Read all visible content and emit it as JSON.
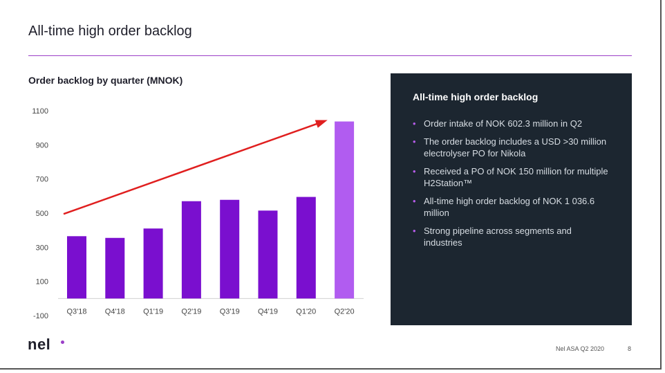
{
  "slide": {
    "title": "All-time high order backlog"
  },
  "chart": {
    "heading": "Order backlog by quarter (MNOK)"
  },
  "chart_data": {
    "type": "bar",
    "title": "Order backlog by quarter (MNOK)",
    "categories": [
      "Q3'18",
      "Q4'18",
      "Q1'19",
      "Q2'19",
      "Q3'19",
      "Q4'19",
      "Q1'20",
      "Q2'20"
    ],
    "values": [
      365,
      355,
      410,
      570,
      578,
      515,
      595,
      1037
    ],
    "ylim": [
      -100,
      1100
    ],
    "yticks": [
      -100,
      100,
      300,
      500,
      700,
      900,
      1100
    ],
    "grid": false,
    "arrow": {
      "from_value": 495,
      "to_value": 1040
    },
    "colors": {
      "bar": "#7a0fcf",
      "highlight": "#b15cf0",
      "arrow": "#e01f1f"
    }
  },
  "panel": {
    "title": "All-time high order backlog",
    "bullets": [
      "Order intake of NOK 602.3 million in Q2",
      "The order backlog includes a USD >30 million electrolyser PO for Nikola",
      "Received a PO of NOK 150 million for multiple H2Station™",
      "All-time high order backlog of NOK 1 036.6 million",
      "Strong pipeline across segments and industries"
    ]
  },
  "footer": {
    "logo": "nel",
    "text": "Nel ASA Q2 2020",
    "page": "8"
  },
  "colors": {
    "accent": "#9b3fc8",
    "panel_bg": "#1c2630"
  }
}
